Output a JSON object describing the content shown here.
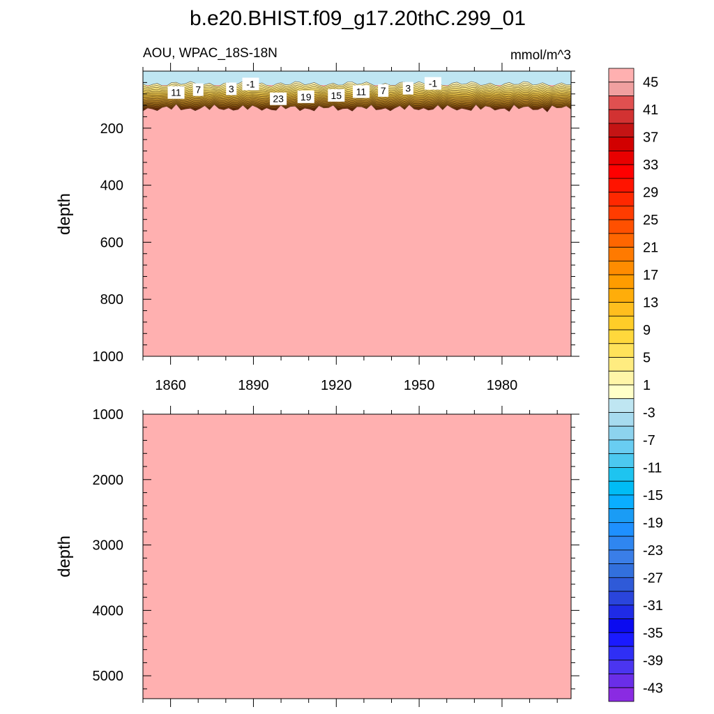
{
  "chart_data": {
    "type": "contour",
    "title": "b.e20.BHIST.f09_g17.20thC.299_01",
    "subtitle_left": "AOU, WPAC_18S-18N",
    "subtitle_right": "mmol/m^3",
    "panels": [
      {
        "id": "upper",
        "ylabel": "depth",
        "ylim": [
          1000,
          0
        ],
        "yticks": [
          200,
          400,
          600,
          800,
          1000
        ],
        "xlim": [
          1850,
          2005
        ],
        "xticks": [
          1860,
          1890,
          1920,
          1950,
          1980
        ],
        "contour_labels": [
          {
            "text": "11",
            "x": 1862,
            "depth": 75
          },
          {
            "text": "7",
            "x": 1870,
            "depth": 65
          },
          {
            "text": "3",
            "x": 1882,
            "depth": 62
          },
          {
            "text": "-1",
            "x": 1889,
            "depth": 45
          },
          {
            "text": "23",
            "x": 1899,
            "depth": 97
          },
          {
            "text": "19",
            "x": 1909,
            "depth": 90
          },
          {
            "text": "15",
            "x": 1920,
            "depth": 85
          },
          {
            "text": "11",
            "x": 1929,
            "depth": 72
          },
          {
            "text": "7",
            "x": 1937,
            "depth": 68
          },
          {
            "text": "3",
            "x": 1946,
            "depth": 60
          },
          {
            "text": "-1",
            "x": 1955,
            "depth": 43
          }
        ]
      },
      {
        "id": "lower",
        "ylabel": "depth",
        "ylim": [
          5350,
          1000
        ],
        "yticks": [
          1000,
          2000,
          3000,
          4000,
          5000
        ],
        "xlim": [
          1850,
          2005
        ],
        "xticks": [
          1860,
          1890,
          1920,
          1950,
          1980
        ],
        "xticklabels_shown": false
      }
    ],
    "colorbar": {
      "levels": [
        -45,
        -43,
        -41,
        -39,
        -37,
        -35,
        -33,
        -31,
        -29,
        -27,
        -25,
        -23,
        -21,
        -19,
        -17,
        -15,
        -13,
        -11,
        -9,
        -7,
        -5,
        -3,
        -1,
        1,
        3,
        5,
        7,
        9,
        11,
        13,
        15,
        17,
        19,
        21,
        23,
        25,
        27,
        29,
        31,
        33,
        35,
        37,
        39,
        41,
        43,
        45
      ],
      "labels": [
        "45",
        "41",
        "37",
        "33",
        "29",
        "25",
        "21",
        "17",
        "13",
        "9",
        "5",
        "1",
        "-3",
        "-7",
        "-11",
        "-15",
        "-19",
        "-23",
        "-27",
        "-31",
        "-35",
        "-39",
        "-43"
      ],
      "colors": [
        "#8a2be2",
        "#6a2ee8",
        "#4b35f0",
        "#2f2ff5",
        "#1a1aff",
        "#0b0bf0",
        "#1f2be6",
        "#2a45dc",
        "#2f5ad8",
        "#3270dd",
        "#3a7ee8",
        "#2f86f0",
        "#1e90ff",
        "#1a9cf5",
        "#0aaeff",
        "#00bcf5",
        "#1ec4f0",
        "#4cc9f0",
        "#69cdf2",
        "#8dd3ee",
        "#a7dbef",
        "#bfe6f2",
        "#ffffc8",
        "#fff5a8",
        "#ffec80",
        "#ffe25a",
        "#ffd83c",
        "#ffcd28",
        "#ffbe1e",
        "#ffad0a",
        "#ff9c00",
        "#ff8c00",
        "#ff7a00",
        "#ff6600",
        "#ff5000",
        "#ff3c00",
        "#ff2800",
        "#ff1400",
        "#ff0000",
        "#e80000",
        "#d20000",
        "#c41414",
        "#d23232",
        "#e05050",
        "#f0a0a0"
      ],
      "top_color": "#ffb0b0"
    },
    "colors": {
      "deep_fill": "#ffb0b0",
      "surface_fill": "#bfe6f2",
      "gradient_band": [
        "#fffccf",
        "#f6e27a",
        "#d8b13c",
        "#b8862a",
        "#8a5a12",
        "#6a2e08",
        "#5a1208"
      ]
    }
  }
}
